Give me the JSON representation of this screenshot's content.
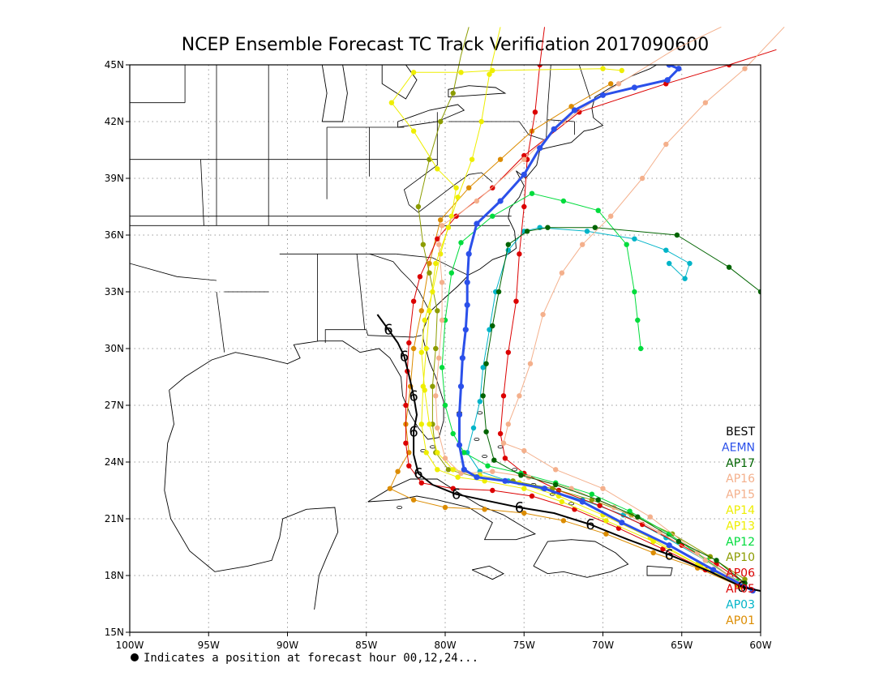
{
  "title": "NCEP Ensemble Forecast TC Track Verification 2017090600",
  "footnote": "Indicates a position at forecast hour 00,12,24...",
  "map": {
    "lon_range": [
      -100,
      -60
    ],
    "lat_range": [
      15,
      45
    ],
    "lon_ticks": [
      {
        "value": -100,
        "label": "100W"
      },
      {
        "value": -95,
        "label": "95W"
      },
      {
        "value": -90,
        "label": "90W"
      },
      {
        "value": -85,
        "label": "85W"
      },
      {
        "value": -80,
        "label": "80W"
      },
      {
        "value": -75,
        "label": "75W"
      },
      {
        "value": -70,
        "label": "70W"
      },
      {
        "value": -65,
        "label": "65W"
      },
      {
        "value": -60,
        "label": "60W"
      }
    ],
    "lat_ticks": [
      {
        "value": 15,
        "label": "15N"
      },
      {
        "value": 18,
        "label": "18N"
      },
      {
        "value": 21,
        "label": "21N"
      },
      {
        "value": 24,
        "label": "24N"
      },
      {
        "value": 27,
        "label": "27N"
      },
      {
        "value": 30,
        "label": "30N"
      },
      {
        "value": 33,
        "label": "33N"
      },
      {
        "value": 36,
        "label": "36N"
      },
      {
        "value": 39,
        "label": "39N"
      },
      {
        "value": 42,
        "label": "42N"
      },
      {
        "value": 45,
        "label": "45N"
      }
    ],
    "grid": true
  },
  "legend": [
    {
      "label": "BEST",
      "color": "#000000"
    },
    {
      "label": "AEMN",
      "color": "#2b50ea"
    },
    {
      "label": "AP17",
      "color": "#006400"
    },
    {
      "label": "AP16",
      "color": "#f4b08c"
    },
    {
      "label": "AP15",
      "color": "#f4b08c"
    },
    {
      "label": "AP14",
      "color": "#eeee00"
    },
    {
      "label": "AP13",
      "color": "#eeee00"
    },
    {
      "label": "AP12",
      "color": "#00dc3c"
    },
    {
      "label": "AP10",
      "color": "#8c9c00"
    },
    {
      "label": "AP06",
      "color": "#dc0000"
    },
    {
      "label": "AP05",
      "color": "#dc0000"
    },
    {
      "label": "AP03",
      "color": "#00b4c8"
    },
    {
      "label": "AP01",
      "color": "#dc8c00"
    }
  ],
  "tracks": [
    {
      "name": "BEST",
      "color": "#000000",
      "width": 2,
      "marker": "hurricane",
      "points": [
        [
          -59.0,
          17.0
        ],
        [
          -61.2,
          17.4
        ],
        [
          -63.2,
          18.2
        ],
        [
          -65.8,
          19.1
        ],
        [
          -68.4,
          19.9
        ],
        [
          -70.8,
          20.7
        ],
        [
          -73.1,
          21.3
        ],
        [
          -75.3,
          21.6
        ],
        [
          -77.6,
          22.0
        ],
        [
          -79.3,
          22.3
        ],
        [
          -80.8,
          22.8
        ],
        [
          -81.7,
          23.4
        ],
        [
          -82.0,
          24.4
        ],
        [
          -82.0,
          25.6
        ],
        [
          -81.8,
          26.5
        ],
        [
          -82.0,
          27.5
        ],
        [
          -82.3,
          28.6
        ],
        [
          -82.6,
          29.6
        ],
        [
          -83.0,
          30.3
        ],
        [
          -83.6,
          31.0
        ],
        [
          -84.3,
          31.8
        ]
      ]
    },
    {
      "name": "AEMN",
      "color": "#2b50ea",
      "width": 3,
      "marker": "dot",
      "points": [
        [
          -60.5,
          17.2
        ],
        [
          -63.0,
          18.3
        ],
        [
          -65.8,
          19.6
        ],
        [
          -68.8,
          20.8
        ],
        [
          -71.3,
          21.9
        ],
        [
          -73.7,
          22.6
        ],
        [
          -76.2,
          23.0
        ],
        [
          -78.0,
          23.2
        ],
        [
          -78.8,
          23.6
        ],
        [
          -79.1,
          24.9
        ],
        [
          -79.1,
          26.5
        ],
        [
          -79.0,
          28.0
        ],
        [
          -78.9,
          29.5
        ],
        [
          -78.7,
          31.0
        ],
        [
          -78.6,
          32.3
        ],
        [
          -78.6,
          33.5
        ],
        [
          -78.5,
          35.0
        ],
        [
          -78.0,
          36.6
        ],
        [
          -76.5,
          37.8
        ],
        [
          -75.0,
          39.2
        ],
        [
          -74.0,
          40.6
        ],
        [
          -73.1,
          41.6
        ],
        [
          -71.8,
          42.6
        ],
        [
          -70.0,
          43.4
        ],
        [
          -68.0,
          43.8
        ],
        [
          -65.9,
          44.2
        ],
        [
          -65.2,
          44.8
        ],
        [
          -65.8,
          45.0
        ]
      ]
    },
    {
      "name": "AP17",
      "color": "#006400",
      "width": 1,
      "marker": "dot",
      "points": [
        [
          -61.0,
          17.6
        ],
        [
          -62.8,
          18.8
        ],
        [
          -65.2,
          19.8
        ],
        [
          -67.8,
          21.1
        ],
        [
          -70.3,
          22.0
        ],
        [
          -73.0,
          22.8
        ],
        [
          -75.2,
          23.3
        ],
        [
          -76.9,
          24.1
        ],
        [
          -77.4,
          25.6
        ],
        [
          -77.6,
          27.5
        ],
        [
          -77.4,
          29.2
        ],
        [
          -77.0,
          31.2
        ],
        [
          -76.6,
          33.0
        ],
        [
          -76.0,
          35.5
        ],
        [
          -74.8,
          36.2
        ],
        [
          -73.5,
          36.4
        ],
        [
          -70.5,
          36.4
        ],
        [
          -65.3,
          36.0
        ],
        [
          -62.0,
          34.3
        ],
        [
          -60.0,
          33.0
        ]
      ]
    },
    {
      "name": "AP16",
      "color": "#f4b08c",
      "width": 1,
      "marker": "dot",
      "points": [
        [
          -61.3,
          17.6
        ],
        [
          -64.0,
          19.2
        ],
        [
          -67.0,
          21.1
        ],
        [
          -70.0,
          22.6
        ],
        [
          -73.0,
          23.6
        ],
        [
          -75.0,
          24.6
        ],
        [
          -76.3,
          25.0
        ],
        [
          -76.0,
          26.0
        ],
        [
          -75.3,
          27.5
        ],
        [
          -74.6,
          29.2
        ],
        [
          -73.8,
          31.8
        ],
        [
          -72.6,
          34.0
        ],
        [
          -71.3,
          35.5
        ],
        [
          -69.5,
          37.0
        ],
        [
          -67.5,
          39.0
        ],
        [
          -66.0,
          40.8
        ],
        [
          -63.5,
          43.0
        ],
        [
          -61.0,
          44.8
        ],
        [
          -58.5,
          47.0
        ]
      ]
    },
    {
      "name": "AP15",
      "color": "#f4b08c",
      "width": 1,
      "marker": "dot",
      "points": [
        [
          -61.2,
          17.5
        ],
        [
          -63.5,
          18.8
        ],
        [
          -66.4,
          20.3
        ],
        [
          -69.3,
          21.6
        ],
        [
          -72.0,
          22.6
        ],
        [
          -74.7,
          23.2
        ],
        [
          -77.0,
          23.5
        ],
        [
          -79.0,
          23.4
        ],
        [
          -80.0,
          24.2
        ],
        [
          -80.5,
          25.8
        ],
        [
          -80.6,
          27.5
        ],
        [
          -80.4,
          29.5
        ],
        [
          -80.2,
          31.5
        ],
        [
          -80.2,
          33.5
        ],
        [
          -80.4,
          35.5
        ],
        [
          -80.2,
          36.5
        ],
        [
          -78.0,
          37.8
        ],
        [
          -75.0,
          40.0
        ],
        [
          -72.5,
          42.0
        ],
        [
          -69.0,
          44.0
        ],
        [
          -65.5,
          45.8
        ],
        [
          -62.5,
          47.0
        ]
      ]
    },
    {
      "name": "AP14",
      "color": "#eeee00",
      "width": 1,
      "marker": "dot",
      "points": [
        [
          -61.3,
          17.4
        ],
        [
          -63.8,
          18.5
        ],
        [
          -66.8,
          19.8
        ],
        [
          -69.8,
          20.9
        ],
        [
          -72.6,
          21.9
        ],
        [
          -75.0,
          22.6
        ],
        [
          -77.5,
          23.0
        ],
        [
          -79.2,
          23.2
        ],
        [
          -80.5,
          23.6
        ],
        [
          -81.2,
          24.5
        ],
        [
          -81.5,
          26.0
        ],
        [
          -81.4,
          28.0
        ],
        [
          -81.2,
          30.0
        ],
        [
          -81.0,
          32.0
        ],
        [
          -80.6,
          34.5
        ],
        [
          -79.8,
          36.4
        ],
        [
          -79.2,
          38.0
        ],
        [
          -78.3,
          40.0
        ],
        [
          -77.7,
          42.0
        ],
        [
          -77.2,
          44.5
        ],
        [
          -76.5,
          47.0
        ]
      ]
    },
    {
      "name": "AP13",
      "color": "#eeee00",
      "width": 1,
      "marker": "dot",
      "points": [
        [
          -61.3,
          17.5
        ],
        [
          -64.0,
          18.6
        ],
        [
          -67.0,
          20.0
        ],
        [
          -70.0,
          21.2
        ],
        [
          -72.8,
          22.2
        ],
        [
          -75.3,
          22.9
        ],
        [
          -77.8,
          23.3
        ],
        [
          -79.5,
          23.6
        ],
        [
          -80.5,
          24.5
        ],
        [
          -81.0,
          26.0
        ],
        [
          -81.3,
          27.8
        ],
        [
          -81.5,
          29.8
        ],
        [
          -81.3,
          31.5
        ],
        [
          -80.8,
          33.0
        ],
        [
          -80.3,
          35.0
        ],
        [
          -79.6,
          37.0
        ],
        [
          -79.3,
          38.5
        ],
        [
          -80.5,
          39.5
        ],
        [
          -82.0,
          41.5
        ],
        [
          -83.4,
          43.0
        ],
        [
          -82.0,
          44.6
        ],
        [
          -79.0,
          44.6
        ],
        [
          -77.0,
          44.7
        ],
        [
          -70.0,
          44.8
        ],
        [
          -68.8,
          44.7
        ]
      ]
    },
    {
      "name": "AP12",
      "color": "#00dc3c",
      "width": 1,
      "marker": "dot",
      "points": [
        [
          -61.5,
          17.7
        ],
        [
          -63.4,
          18.8
        ],
        [
          -65.8,
          20.2
        ],
        [
          -68.3,
          21.4
        ],
        [
          -70.7,
          22.3
        ],
        [
          -73.0,
          22.9
        ],
        [
          -75.2,
          23.4
        ],
        [
          -77.3,
          23.8
        ],
        [
          -78.8,
          24.5
        ],
        [
          -79.5,
          25.5
        ],
        [
          -80.0,
          27.0
        ],
        [
          -80.2,
          29.0
        ],
        [
          -80.0,
          31.5
        ],
        [
          -79.6,
          34.0
        ],
        [
          -79.0,
          35.6
        ],
        [
          -77.0,
          37.0
        ],
        [
          -74.5,
          38.2
        ],
        [
          -72.5,
          37.8
        ],
        [
          -70.3,
          37.3
        ],
        [
          -68.5,
          35.5
        ],
        [
          -68.0,
          33.0
        ],
        [
          -67.8,
          31.5
        ],
        [
          -67.6,
          30.0
        ]
      ]
    },
    {
      "name": "AP10",
      "color": "#8c9c00",
      "width": 1,
      "marker": "dot",
      "points": [
        [
          -61.0,
          17.8
        ],
        [
          -63.2,
          19.0
        ],
        [
          -65.6,
          20.2
        ],
        [
          -68.2,
          21.2
        ],
        [
          -70.7,
          22.0
        ],
        [
          -73.2,
          22.6
        ],
        [
          -75.7,
          23.0
        ],
        [
          -78.0,
          23.2
        ],
        [
          -79.8,
          23.6
        ],
        [
          -80.6,
          24.5
        ],
        [
          -80.8,
          26.0
        ],
        [
          -80.8,
          28.0
        ],
        [
          -80.6,
          30.0
        ],
        [
          -80.5,
          32.0
        ],
        [
          -81.0,
          34.0
        ],
        [
          -81.4,
          35.5
        ],
        [
          -81.7,
          37.5
        ],
        [
          -81.0,
          40.0
        ],
        [
          -80.3,
          42.0
        ],
        [
          -79.5,
          43.5
        ],
        [
          -79.0,
          45.5
        ],
        [
          -78.5,
          47.0
        ]
      ]
    },
    {
      "name": "AP06",
      "color": "#dc0000",
      "width": 1,
      "marker": "dot",
      "points": [
        [
          -61.0,
          17.6
        ],
        [
          -62.8,
          18.6
        ],
        [
          -65.0,
          19.6
        ],
        [
          -67.5,
          20.7
        ],
        [
          -70.2,
          21.7
        ],
        [
          -72.8,
          22.5
        ],
        [
          -75.0,
          23.4
        ],
        [
          -76.2,
          24.2
        ],
        [
          -76.5,
          25.5
        ],
        [
          -76.3,
          27.5
        ],
        [
          -76.0,
          29.8
        ],
        [
          -75.5,
          32.5
        ],
        [
          -75.3,
          35.0
        ],
        [
          -75.0,
          37.5
        ],
        [
          -74.8,
          40.0
        ],
        [
          -74.3,
          42.5
        ],
        [
          -74.0,
          45.0
        ],
        [
          -73.7,
          47.0
        ]
      ]
    },
    {
      "name": "AP05",
      "color": "#dc0000",
      "width": 1,
      "marker": "dot",
      "points": [
        [
          -61.0,
          17.4
        ],
        [
          -63.5,
          18.3
        ],
        [
          -66.2,
          19.4
        ],
        [
          -69.0,
          20.5
        ],
        [
          -71.8,
          21.5
        ],
        [
          -74.5,
          22.2
        ],
        [
          -77.0,
          22.5
        ],
        [
          -79.5,
          22.6
        ],
        [
          -81.5,
          22.9
        ],
        [
          -82.3,
          23.8
        ],
        [
          -82.5,
          25.0
        ],
        [
          -82.5,
          27.0
        ],
        [
          -82.4,
          28.8
        ],
        [
          -82.3,
          30.3
        ],
        [
          -82.0,
          32.5
        ],
        [
          -81.6,
          33.8
        ],
        [
          -80.5,
          35.8
        ],
        [
          -79.3,
          37.0
        ],
        [
          -77.0,
          38.5
        ],
        [
          -75.0,
          40.2
        ],
        [
          -71.5,
          42.5
        ],
        [
          -66.0,
          44.0
        ],
        [
          -62.0,
          45.0
        ],
        [
          -59.0,
          45.8
        ]
      ]
    },
    {
      "name": "AP03",
      "color": "#00b4c8",
      "width": 1,
      "marker": "dot",
      "points": [
        [
          -61.2,
          17.6
        ],
        [
          -63.5,
          18.8
        ],
        [
          -66.0,
          20.0
        ],
        [
          -68.7,
          21.2
        ],
        [
          -71.3,
          22.0
        ],
        [
          -73.8,
          22.6
        ],
        [
          -76.0,
          23.0
        ],
        [
          -77.8,
          23.5
        ],
        [
          -78.6,
          24.5
        ],
        [
          -78.2,
          25.8
        ],
        [
          -77.8,
          27.2
        ],
        [
          -77.6,
          29.0
        ],
        [
          -77.2,
          31.0
        ],
        [
          -76.8,
          33.0
        ],
        [
          -76.0,
          35.2
        ],
        [
          -75.0,
          36.2
        ],
        [
          -74.0,
          36.4
        ],
        [
          -71.0,
          36.2
        ],
        [
          -68.0,
          35.8
        ],
        [
          -66.0,
          35.2
        ],
        [
          -64.5,
          34.5
        ],
        [
          -64.8,
          33.7
        ],
        [
          -65.8,
          34.5
        ]
      ]
    },
    {
      "name": "AP01",
      "color": "#dc8c00",
      "width": 1,
      "marker": "dot",
      "points": [
        [
          -61.5,
          17.5
        ],
        [
          -64.0,
          18.4
        ],
        [
          -66.8,
          19.2
        ],
        [
          -69.8,
          20.2
        ],
        [
          -72.5,
          20.9
        ],
        [
          -75.0,
          21.3
        ],
        [
          -77.5,
          21.5
        ],
        [
          -80.0,
          21.6
        ],
        [
          -82.0,
          22.0
        ],
        [
          -83.5,
          22.6
        ],
        [
          -83.0,
          23.5
        ],
        [
          -82.3,
          24.5
        ],
        [
          -82.5,
          26.0
        ],
        [
          -82.2,
          28.0
        ],
        [
          -82.0,
          30.0
        ],
        [
          -81.5,
          32.0
        ],
        [
          -81.0,
          34.5
        ],
        [
          -80.3,
          36.8
        ],
        [
          -78.5,
          38.5
        ],
        [
          -76.5,
          40.0
        ],
        [
          -74.5,
          41.5
        ],
        [
          -72.0,
          42.8
        ],
        [
          -69.5,
          44.0
        ]
      ]
    }
  ]
}
